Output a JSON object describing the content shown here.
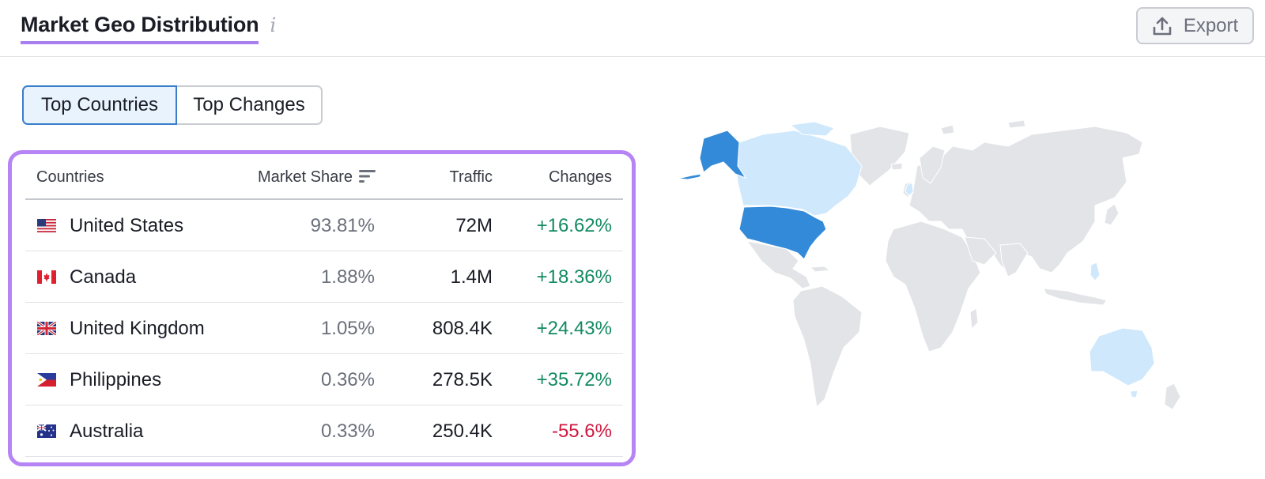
{
  "header": {
    "title": "Market Geo Distribution",
    "info_icon": "i",
    "export_label": "Export"
  },
  "tabs": [
    {
      "label": "Top Countries",
      "active": true
    },
    {
      "label": "Top Changes",
      "active": false
    }
  ],
  "table": {
    "columns": [
      "Countries",
      "Market Share",
      "Traffic",
      "Changes"
    ],
    "rows": [
      {
        "flag": "us-flag-icon",
        "country": "United States",
        "market_share": "93.81%",
        "traffic": "72M",
        "change": "+16.62%"
      },
      {
        "flag": "ca-flag-icon",
        "country": "Canada",
        "market_share": "1.88%",
        "traffic": "1.4M",
        "change": "+18.36%"
      },
      {
        "flag": "gb-flag-icon",
        "country": "United Kingdom",
        "market_share": "1.05%",
        "traffic": "808.4K",
        "change": "+24.43%"
      },
      {
        "flag": "ph-flag-icon",
        "country": "Philippines",
        "market_share": "0.36%",
        "traffic": "278.5K",
        "change": "+35.72%"
      },
      {
        "flag": "au-flag-icon",
        "country": "Australia",
        "market_share": "0.33%",
        "traffic": "250.4K",
        "change": "-55.6%"
      }
    ]
  },
  "map": {
    "highlight_strong": [
      "United States"
    ],
    "highlight_light": [
      "Canada",
      "Australia",
      "United Kingdom",
      "Philippines"
    ],
    "colors": {
      "strong": "#338ad8",
      "light": "#cfe8fc",
      "base": "#e3e4e8",
      "border": "#ffffff"
    }
  },
  "colors": {
    "accent": "#b784f5",
    "active_tab_border": "#3a7ec9",
    "active_tab_bg": "#e8f3fd",
    "positive": "#138a62",
    "negative": "#d0183f"
  }
}
